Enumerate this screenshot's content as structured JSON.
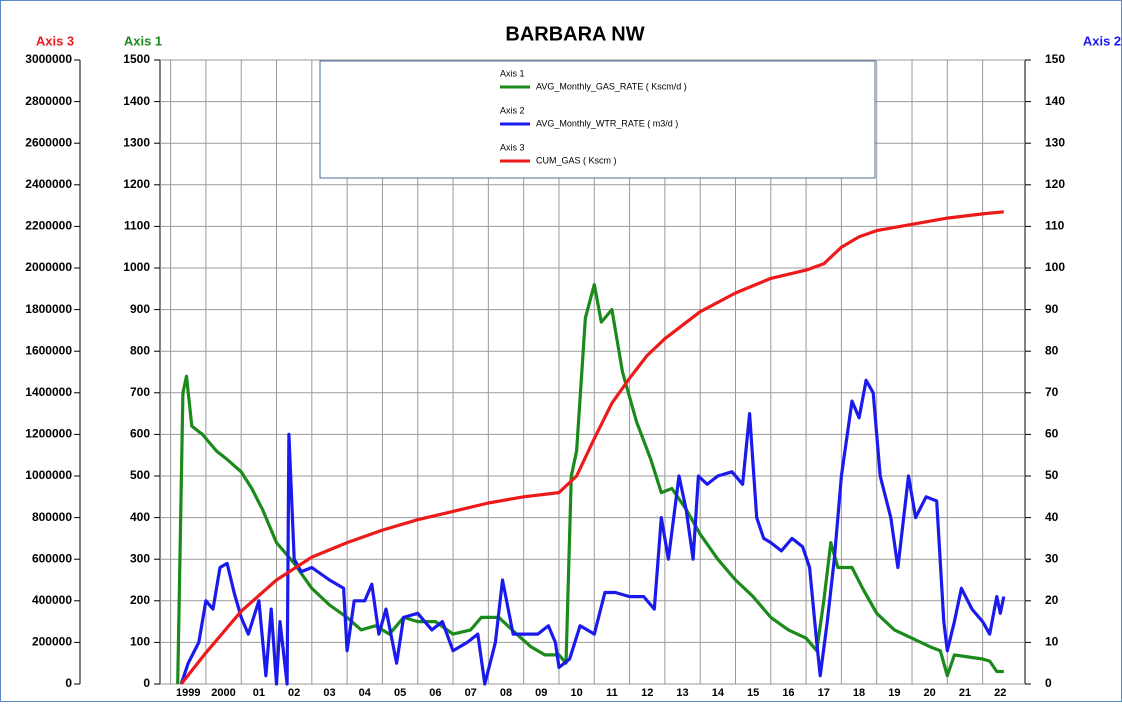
{
  "chart_data": {
    "type": "line",
    "title": "BARBARA NW",
    "y_label": "Axis 1",
    "y2_label": "Axis 2",
    "y3_label": "Axis 3",
    "ylim": [
      0,
      1500
    ],
    "yticks": [
      0,
      100,
      200,
      300,
      400,
      500,
      600,
      700,
      800,
      900,
      1000,
      1100,
      1200,
      1300,
      1400,
      1500
    ],
    "y_color": "#1a8a1a",
    "y2lim": [
      0,
      150
    ],
    "y2ticks": [
      0,
      10,
      20,
      30,
      40,
      50,
      60,
      70,
      80,
      90,
      100,
      110,
      120,
      130,
      140,
      150
    ],
    "y2_color": "#1a1aee",
    "y3lim": [
      0,
      3000000
    ],
    "y3ticks": [
      0,
      200000,
      400000,
      600000,
      800000,
      1000000,
      1200000,
      1400000,
      1600000,
      1800000,
      2000000,
      2200000,
      2400000,
      2600000,
      2800000,
      3000000
    ],
    "y3_color": "#ee1a1a",
    "xlim": [
      1998.7,
      2023.2
    ],
    "xticks": [
      {
        "value": 1999,
        "label": "1999"
      },
      {
        "value": 2000,
        "label": "2000"
      },
      {
        "value": 2001,
        "label": "01"
      },
      {
        "value": 2002,
        "label": "02"
      },
      {
        "value": 2003,
        "label": "03"
      },
      {
        "value": 2004,
        "label": "04"
      },
      {
        "value": 2005,
        "label": "05"
      },
      {
        "value": 2006,
        "label": "06"
      },
      {
        "value": 2007,
        "label": "07"
      },
      {
        "value": 2008,
        "label": "08"
      },
      {
        "value": 2009,
        "label": "09"
      },
      {
        "value": 2010,
        "label": "10"
      },
      {
        "value": 2011,
        "label": "11"
      },
      {
        "value": 2012,
        "label": "12"
      },
      {
        "value": 2013,
        "label": "13"
      },
      {
        "value": 2014,
        "label": "14"
      },
      {
        "value": 2015,
        "label": "15"
      },
      {
        "value": 2016,
        "label": "16"
      },
      {
        "value": 2017,
        "label": "17"
      },
      {
        "value": 2018,
        "label": "18"
      },
      {
        "value": 2019,
        "label": "19"
      },
      {
        "value": 2020,
        "label": "20"
      },
      {
        "value": 2021,
        "label": "21"
      },
      {
        "value": 2022,
        "label": "22"
      }
    ],
    "grid": true,
    "series": [
      {
        "name": "AVG_Monthly_GAS_RATE ( Kscm/d )",
        "color": "#1a8a1a",
        "axis": "y",
        "x": [
          1999.2,
          1999.35,
          1999.45,
          1999.6,
          1999.9,
          2000.3,
          2000.6,
          2001.0,
          2001.3,
          2001.6,
          2002.0,
          2002.5,
          2003.0,
          2003.5,
          2004.0,
          2004.4,
          2004.8,
          2005.2,
          2005.6,
          2006.0,
          2006.5,
          2007.0,
          2007.5,
          2007.8,
          2008.3,
          2008.8,
          2009.2,
          2009.6,
          2010.0,
          2010.2,
          2010.35,
          2010.5,
          2010.75,
          2011.0,
          2011.2,
          2011.5,
          2011.8,
          2012.2,
          2012.6,
          2012.9,
          2013.2,
          2013.6,
          2014.0,
          2014.5,
          2015.0,
          2015.5,
          2016.0,
          2016.5,
          2017.0,
          2017.3,
          2017.5,
          2017.7,
          2017.9,
          2018.3,
          2018.6,
          2019.0,
          2019.5,
          2020.0,
          2020.5,
          2020.8,
          2021.0,
          2021.2,
          2021.6,
          2022.0,
          2022.2,
          2022.4,
          2022.6
        ],
        "values": [
          0,
          700,
          740,
          620,
          600,
          560,
          540,
          510,
          470,
          420,
          340,
          290,
          230,
          190,
          160,
          130,
          140,
          120,
          160,
          150,
          150,
          120,
          130,
          160,
          160,
          120,
          90,
          70,
          70,
          50,
          500,
          560,
          880,
          960,
          870,
          900,
          750,
          630,
          540,
          460,
          470,
          420,
          360,
          300,
          250,
          210,
          160,
          130,
          110,
          80,
          200,
          340,
          280,
          280,
          230,
          170,
          130,
          110,
          90,
          80,
          20,
          70,
          65,
          60,
          55,
          30,
          30
        ]
      },
      {
        "name": "AVG_Monthly_WTR_RATE ( m3/d )",
        "color": "#1a1aee",
        "axis": "y2",
        "x": [
          1999.3,
          1999.5,
          1999.8,
          2000.0,
          2000.2,
          2000.4,
          2000.6,
          2000.8,
          2001.0,
          2001.2,
          2001.5,
          2001.7,
          2001.85,
          2002.0,
          2002.1,
          2002.3,
          2002.35,
          2002.5,
          2002.7,
          2003.0,
          2003.5,
          2003.9,
          2004.0,
          2004.2,
          2004.5,
          2004.7,
          2004.9,
          2005.1,
          2005.4,
          2005.6,
          2006.0,
          2006.4,
          2006.7,
          2007.0,
          2007.4,
          2007.7,
          2007.9,
          2008.2,
          2008.4,
          2008.7,
          2009.0,
          2009.4,
          2009.7,
          2009.9,
          2010.0,
          2010.3,
          2010.6,
          2010.8,
          2011.0,
          2011.3,
          2011.6,
          2012.0,
          2012.4,
          2012.7,
          2012.9,
          2013.1,
          2013.4,
          2013.6,
          2013.8,
          2013.95,
          2014.2,
          2014.5,
          2014.9,
          2015.2,
          2015.4,
          2015.6,
          2015.8,
          2016.0,
          2016.3,
          2016.6,
          2016.9,
          2017.1,
          2017.3,
          2017.4,
          2017.6,
          2017.8,
          2018.0,
          2018.3,
          2018.5,
          2018.7,
          2018.9,
          2019.1,
          2019.4,
          2019.6,
          2019.9,
          2020.1,
          2020.4,
          2020.7,
          2020.9,
          2021.0,
          2021.2,
          2021.4,
          2021.7,
          2022.0,
          2022.2,
          2022.4,
          2022.5,
          2022.6
        ],
        "values": [
          0,
          5,
          10,
          20,
          18,
          28,
          29,
          22,
          16,
          12,
          20,
          2,
          18,
          0,
          15,
          0,
          60,
          30,
          27,
          28,
          25,
          23,
          8,
          20,
          20,
          24,
          12,
          18,
          5,
          16,
          17,
          13,
          15,
          8,
          10,
          12,
          0,
          10,
          25,
          12,
          12,
          12,
          14,
          10,
          4,
          6,
          14,
          13,
          12,
          22,
          22,
          21,
          21,
          18,
          40,
          30,
          50,
          42,
          30,
          50,
          48,
          50,
          51,
          48,
          65,
          40,
          35,
          34,
          32,
          35,
          33,
          28,
          10,
          2,
          15,
          30,
          50,
          68,
          64,
          73,
          70,
          50,
          40,
          28,
          50,
          40,
          45,
          44,
          15,
          8,
          15,
          23,
          18,
          15,
          12,
          21,
          17,
          21
        ]
      },
      {
        "name": "CUM_GAS ( Kscm )",
        "color": "#ee1a1a",
        "axis": "y3",
        "x": [
          1999.3,
          2000,
          2001,
          2002,
          2003,
          2004,
          2005,
          2006,
          2007,
          2008,
          2009,
          2010,
          2010.5,
          2011,
          2011.5,
          2012,
          2012.5,
          2013,
          2014,
          2015,
          2016,
          2017,
          2017.5,
          2018,
          2018.5,
          2019,
          2020,
          2021,
          2022,
          2022.6
        ],
        "values": [
          0,
          150000,
          350000,
          500000,
          610000,
          680000,
          740000,
          790000,
          830000,
          870000,
          900000,
          920000,
          1000000,
          1180000,
          1350000,
          1470000,
          1580000,
          1660000,
          1790000,
          1880000,
          1950000,
          1990000,
          2020000,
          2100000,
          2150000,
          2180000,
          2210000,
          2240000,
          2260000,
          2270000
        ]
      }
    ]
  }
}
